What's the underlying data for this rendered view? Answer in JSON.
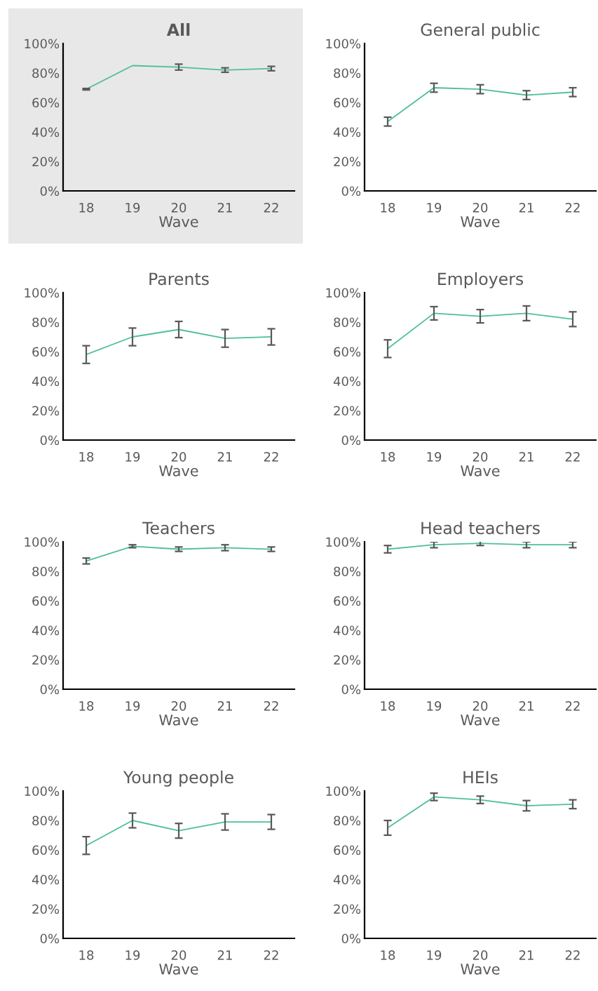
{
  "chart_data": [
    {
      "type": "line",
      "title": "All",
      "xlabel": "Wave",
      "categories": [
        "18",
        "19",
        "20",
        "21",
        "22"
      ],
      "series": [
        {
          "color": "#4dbf9b",
          "values": [
            69,
            85,
            84,
            82,
            83
          ],
          "errors": [
            0.5,
            null,
            2,
            1.5,
            1.5
          ]
        }
      ],
      "ylim": [
        0,
        100
      ],
      "yticks": [
        {
          "value": 0,
          "label": "0%"
        },
        {
          "value": 20,
          "label": "20%"
        },
        {
          "value": 40,
          "label": "40%"
        },
        {
          "value": 60,
          "label": "60%"
        },
        {
          "value": 80,
          "label": "80%"
        },
        {
          "value": 100,
          "label": "100%"
        }
      ],
      "grid": false,
      "marker": "none"
    },
    {
      "type": "line",
      "title": "General public",
      "xlabel": "Wave",
      "categories": [
        "18",
        "19",
        "20",
        "21",
        "22"
      ],
      "series": [
        {
          "color": "#4dbf9b",
          "values": [
            47,
            70,
            69,
            65,
            67
          ],
          "errors": [
            3,
            3,
            3,
            3,
            3
          ]
        }
      ],
      "ylim": [
        0,
        100
      ],
      "yticks": [
        {
          "value": 0,
          "label": "0%"
        },
        {
          "value": 20,
          "label": "20%"
        },
        {
          "value": 40,
          "label": "40%"
        },
        {
          "value": 60,
          "label": "60%"
        },
        {
          "value": 80,
          "label": "80%"
        },
        {
          "value": 100,
          "label": "100%"
        }
      ],
      "grid": false,
      "marker": "none"
    },
    {
      "type": "line",
      "title": "Parents",
      "xlabel": "Wave",
      "categories": [
        "18",
        "19",
        "20",
        "21",
        "22"
      ],
      "series": [
        {
          "color": "#4dbf9b",
          "values": [
            58,
            70,
            75,
            69,
            70
          ],
          "errors": [
            6,
            6,
            5.5,
            6,
            5.5
          ]
        }
      ],
      "ylim": [
        0,
        100
      ],
      "yticks": [
        {
          "value": 0,
          "label": "0%"
        },
        {
          "value": 20,
          "label": "20%"
        },
        {
          "value": 40,
          "label": "40%"
        },
        {
          "value": 60,
          "label": "60%"
        },
        {
          "value": 80,
          "label": "80%"
        },
        {
          "value": 100,
          "label": "100%"
        }
      ],
      "grid": false,
      "marker": "none"
    },
    {
      "type": "line",
      "title": "Employers",
      "xlabel": "Wave",
      "categories": [
        "18",
        "19",
        "20",
        "21",
        "22"
      ],
      "series": [
        {
          "color": "#4dbf9b",
          "values": [
            62,
            86,
            84,
            86,
            82
          ],
          "errors": [
            6,
            4.5,
            4.5,
            5,
            5
          ]
        }
      ],
      "ylim": [
        0,
        100
      ],
      "yticks": [
        {
          "value": 0,
          "label": "0%"
        },
        {
          "value": 20,
          "label": "20%"
        },
        {
          "value": 40,
          "label": "40%"
        },
        {
          "value": 60,
          "label": "60%"
        },
        {
          "value": 80,
          "label": "80%"
        },
        {
          "value": 100,
          "label": "100%"
        }
      ],
      "grid": false,
      "marker": "none"
    },
    {
      "type": "line",
      "title": "Teachers",
      "xlabel": "Wave",
      "categories": [
        "18",
        "19",
        "20",
        "21",
        "22"
      ],
      "series": [
        {
          "color": "#4dbf9b",
          "values": [
            87,
            97,
            95,
            96,
            95
          ],
          "errors": [
            2,
            1,
            1.5,
            2,
            1.5
          ]
        }
      ],
      "ylim": [
        0,
        100
      ],
      "yticks": [
        {
          "value": 0,
          "label": "0%"
        },
        {
          "value": 20,
          "label": "20%"
        },
        {
          "value": 40,
          "label": "40%"
        },
        {
          "value": 60,
          "label": "60%"
        },
        {
          "value": 80,
          "label": "80%"
        },
        {
          "value": 100,
          "label": "100%"
        }
      ],
      "grid": false,
      "marker": "none"
    },
    {
      "type": "line",
      "title": "Head teachers",
      "xlabel": "Wave",
      "categories": [
        "18",
        "19",
        "20",
        "21",
        "22"
      ],
      "series": [
        {
          "color": "#4dbf9b",
          "values": [
            95,
            98,
            99,
            98,
            98
          ],
          "errors": [
            2.5,
            2,
            1.5,
            2,
            2
          ]
        }
      ],
      "ylim": [
        0,
        100
      ],
      "yticks": [
        {
          "value": 0,
          "label": "0%"
        },
        {
          "value": 20,
          "label": "20%"
        },
        {
          "value": 40,
          "label": "40%"
        },
        {
          "value": 60,
          "label": "60%"
        },
        {
          "value": 80,
          "label": "80%"
        },
        {
          "value": 100,
          "label": "100%"
        }
      ],
      "grid": false,
      "marker": "none"
    },
    {
      "type": "line",
      "title": "Young people",
      "xlabel": "Wave",
      "categories": [
        "18",
        "19",
        "20",
        "21",
        "22"
      ],
      "series": [
        {
          "color": "#4dbf9b",
          "values": [
            63,
            80,
            73,
            79,
            79
          ],
          "errors": [
            6,
            5,
            5,
            5.5,
            5
          ]
        }
      ],
      "ylim": [
        0,
        100
      ],
      "yticks": [
        {
          "value": 0,
          "label": "0%"
        },
        {
          "value": 20,
          "label": "20%"
        },
        {
          "value": 40,
          "label": "40%"
        },
        {
          "value": 60,
          "label": "60%"
        },
        {
          "value": 80,
          "label": "80%"
        },
        {
          "value": 100,
          "label": "100%"
        }
      ],
      "grid": false,
      "marker": "none"
    },
    {
      "type": "line",
      "title": "HEIs",
      "xlabel": "Wave",
      "categories": [
        "18",
        "19",
        "20",
        "21",
        "22"
      ],
      "series": [
        {
          "color": "#4dbf9b",
          "values": [
            75,
            96,
            94,
            90,
            91
          ],
          "errors": [
            5,
            2.5,
            2.5,
            3.5,
            3
          ]
        }
      ],
      "ylim": [
        0,
        100
      ],
      "yticks": [
        {
          "value": 0,
          "label": "0%"
        },
        {
          "value": 20,
          "label": "20%"
        },
        {
          "value": 40,
          "label": "40%"
        },
        {
          "value": 60,
          "label": "60%"
        },
        {
          "value": 80,
          "label": "80%"
        },
        {
          "value": 100,
          "label": "100%"
        }
      ],
      "grid": false,
      "marker": "none"
    }
  ]
}
